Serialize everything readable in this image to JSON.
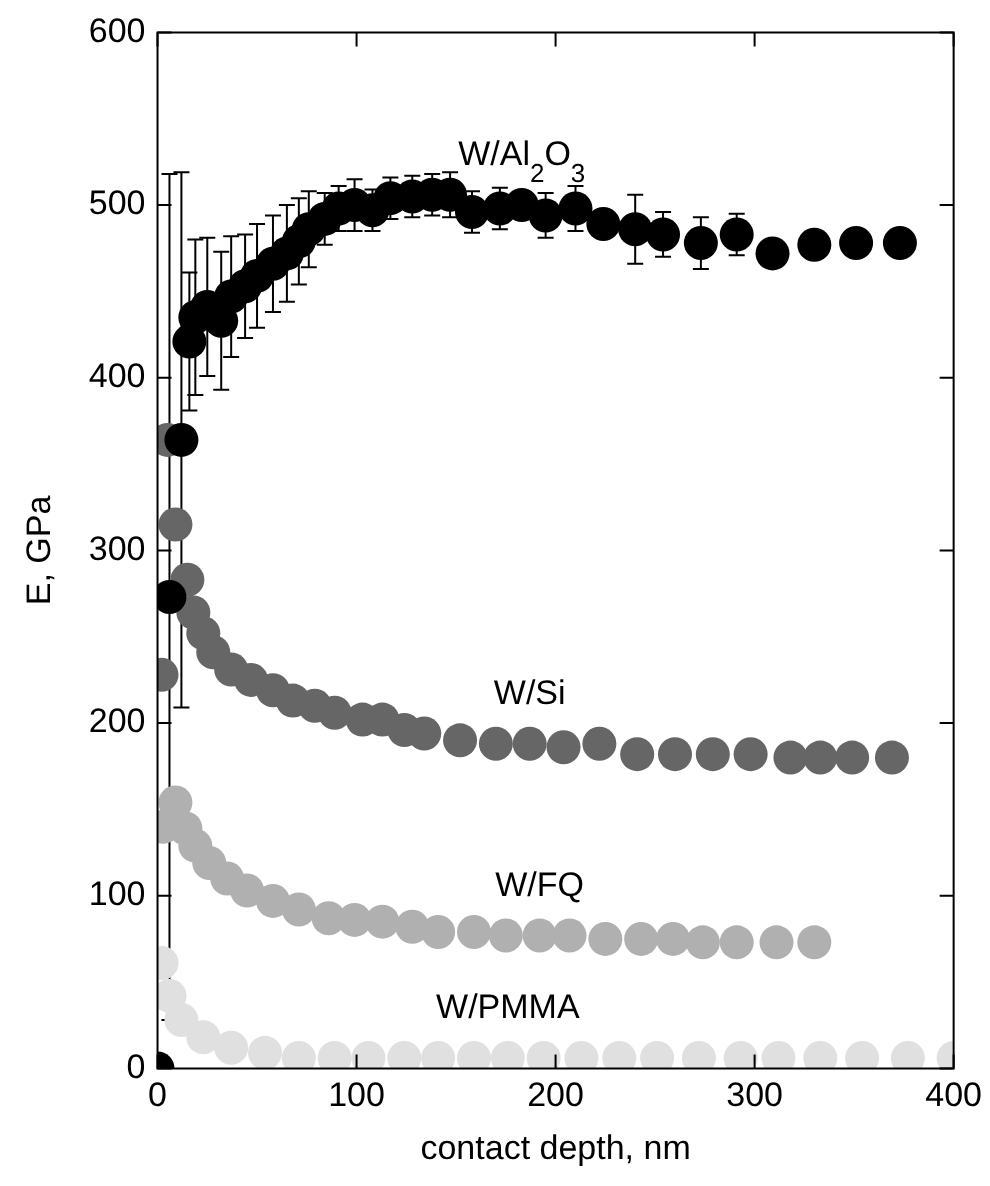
{
  "chart_data": {
    "type": "scatter",
    "xlabel": "contact depth, nm",
    "ylabel": "E, GPa",
    "xlim": [
      0,
      400
    ],
    "ylim": [
      0,
      600
    ],
    "xticks": [
      0,
      100,
      200,
      300,
      400
    ],
    "yticks": [
      0,
      100,
      200,
      300,
      400,
      500,
      600
    ],
    "grid": false,
    "legend": false,
    "marker": "circle",
    "series": [
      {
        "color": "#000000",
        "x": [
          0,
          6,
          12,
          16,
          19,
          25,
          32,
          37,
          44,
          50,
          58,
          65,
          71,
          76,
          84,
          91,
          99,
          108,
          117,
          128,
          138,
          147,
          158,
          172,
          183,
          195,
          210,
          224,
          240,
          254,
          273,
          291,
          309,
          330,
          351,
          373
        ],
        "values": [
          0,
          273,
          364,
          421,
          435,
          441,
          433,
          447,
          453,
          459,
          466,
          472,
          479,
          486,
          492,
          498,
          500,
          497,
          504,
          505,
          506,
          506,
          496,
          498,
          500,
          494,
          498,
          489,
          486,
          483,
          478,
          483,
          472,
          477,
          478,
          478
        ],
        "errors": [
          null,
          245,
          155,
          40,
          45,
          40,
          40,
          35,
          30,
          30,
          28,
          28,
          25,
          22,
          15,
          13,
          15,
          12,
          12,
          12,
          12,
          13,
          12,
          12,
          null,
          13,
          13,
          null,
          20,
          13,
          15,
          12,
          null,
          null,
          null,
          null
        ],
        "name": "W/Al$_{2}$O$_{3}$"
      },
      {
        "name": "W/Si",
        "color": "#666666",
        "x": [
          2,
          5,
          9,
          15,
          18,
          23,
          28,
          37,
          47,
          58,
          68,
          79,
          89,
          103,
          113,
          124,
          134,
          152,
          170,
          187,
          204,
          222,
          241,
          260,
          279,
          298,
          318,
          333,
          349,
          369
        ],
        "values": [
          228,
          364,
          315,
          283,
          264,
          252,
          241,
          231,
          225,
          219,
          213,
          210,
          206,
          202,
          202,
          196,
          194,
          190,
          188,
          188,
          186,
          188,
          182,
          182,
          182,
          182,
          180,
          180,
          180,
          180
        ]
      },
      {
        "name": "W/FQ",
        "color": "#b0b0b0",
        "x": [
          3,
          9,
          14,
          19,
          26,
          35,
          45,
          58,
          71,
          86,
          99,
          113,
          128,
          141,
          159,
          175,
          192,
          207,
          225,
          243,
          259,
          274,
          291,
          311,
          330
        ],
        "values": [
          140,
          154,
          139,
          129,
          119,
          110,
          103,
          97,
          92,
          87,
          86,
          85,
          82,
          79,
          79,
          77,
          77,
          77,
          75,
          75,
          75,
          73,
          73,
          73,
          73
        ]
      },
      {
        "name": "W/PMMA",
        "color": "#e0e0e0",
        "x": [
          2,
          6,
          12,
          23,
          37,
          54,
          71,
          89,
          106,
          124,
          141,
          159,
          176,
          194,
          213,
          232,
          251,
          272,
          293,
          312,
          333,
          354,
          377,
          400
        ],
        "values": [
          61,
          42,
          28,
          18,
          12,
          9,
          6,
          6,
          6,
          6,
          6,
          6,
          6,
          6,
          6,
          6,
          6,
          6,
          6,
          6,
          6,
          6,
          6,
          6
        ]
      }
    ]
  }
}
